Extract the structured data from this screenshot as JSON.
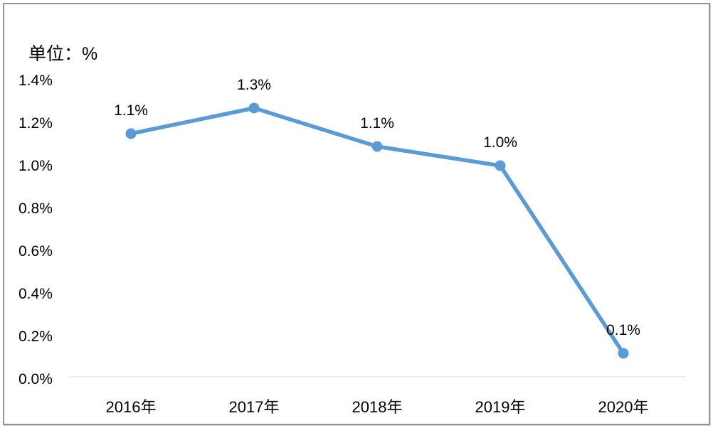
{
  "chart_data": {
    "type": "line",
    "title": "单位：%",
    "categories": [
      "2016年",
      "2017年",
      "2018年",
      "2019年",
      "2020年"
    ],
    "values": [
      1.15,
      1.27,
      1.09,
      1.0,
      0.12
    ],
    "point_labels": [
      "1.1%",
      "1.3%",
      "1.1%",
      "1.0%",
      "0.1%"
    ],
    "y_ticks": [
      "1.4%",
      "1.2%",
      "1.0%",
      "0.8%",
      "0.6%",
      "0.4%",
      "0.2%",
      "0.0%"
    ],
    "y_tick_values": [
      1.4,
      1.2,
      1.0,
      0.8,
      0.6,
      0.4,
      0.2,
      0.0
    ],
    "ylim": [
      0,
      1.4
    ],
    "xlabel": "",
    "ylabel": "",
    "legend_position": "none",
    "grid": false,
    "line_color": "#5B9BD5",
    "marker_color": "#5B9BD5",
    "baseline_color": "#EDEDED",
    "text_color": "#000000",
    "frame_border_color": "#949494"
  }
}
